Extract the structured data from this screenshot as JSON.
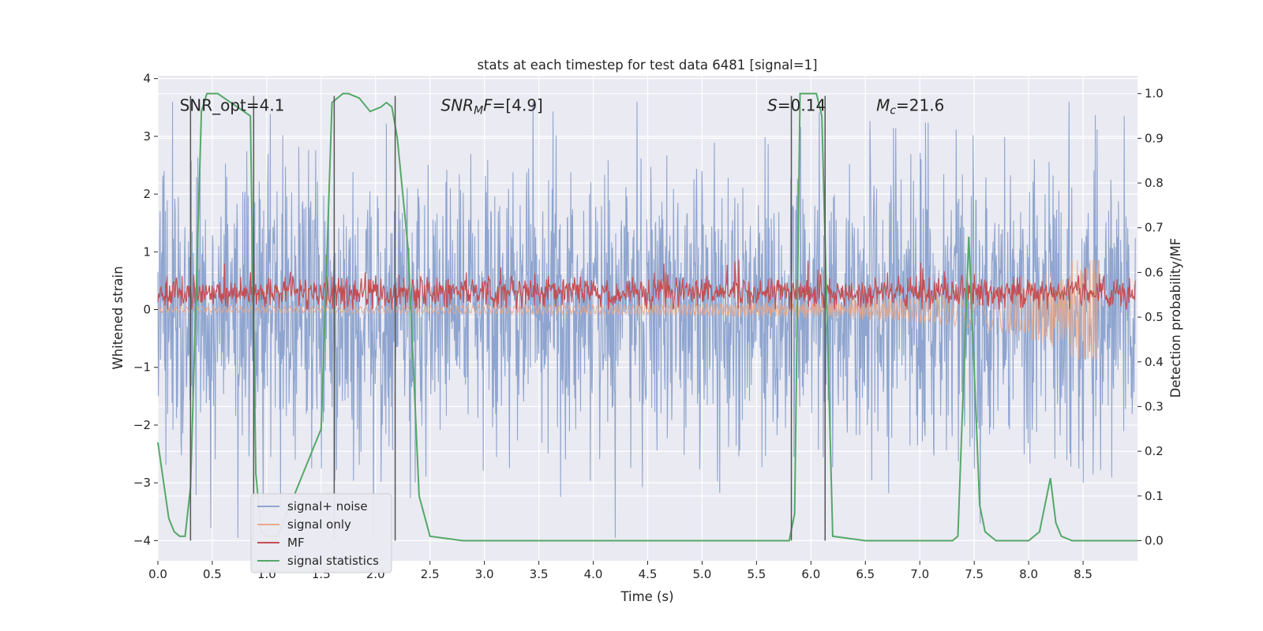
{
  "chart_data": {
    "type": "line",
    "title": "stats at each timestep for test data 6481 [signal=1]",
    "xlabel": "Time (s)",
    "ylabel": "Whitened strain",
    "ylabel_right": "Detection probability/MF",
    "xlim": [
      0,
      9.0
    ],
    "ylim": [
      -4.35,
      4.05
    ],
    "ylim_right": [
      -0.045,
      1.04
    ],
    "x_ticks": [
      0,
      0.5,
      1,
      1.5,
      2,
      2.5,
      3,
      3.5,
      4,
      4.5,
      5,
      5.5,
      6,
      6.5,
      7,
      7.5,
      8,
      8.5
    ],
    "x_tick_labels": [
      "0.0",
      "0.5",
      "1.0",
      "1.5",
      "2.0",
      "2.5",
      "3.0",
      "3.5",
      "4.0",
      "4.5",
      "5.0",
      "5.5",
      "6.0",
      "6.5",
      "7.0",
      "7.5",
      "8.0",
      "8.5"
    ],
    "y_ticks": [
      -4,
      -3,
      -2,
      -1,
      0,
      1,
      2,
      3,
      4
    ],
    "y_tick_labels": [
      "−4",
      "−3",
      "−2",
      "−1",
      "0",
      "1",
      "2",
      "3",
      "4"
    ],
    "y_ticks_right": [
      0,
      0.1,
      0.2,
      0.3,
      0.4,
      0.5,
      0.6,
      0.7,
      0.8,
      0.9,
      1.0
    ],
    "y_tick_labels_right": [
      "0.0",
      "0.1",
      "0.2",
      "0.3",
      "0.4",
      "0.5",
      "0.6",
      "0.7",
      "0.8",
      "0.9",
      "1.0"
    ],
    "grid": true,
    "legend_placement": "lower-left",
    "annotations": [
      {
        "text": "SNR_opt=4.1",
        "x": 0.2,
        "y": 3.55
      },
      {
        "text": "SNR_M F=[4.9]",
        "x": 2.6,
        "y": 3.55
      },
      {
        "text": "S=0.14",
        "x": 5.6,
        "y": 3.55
      },
      {
        "text": "M_c=21.6",
        "x": 6.6,
        "y": 3.55
      }
    ],
    "vertical_lines": [
      0.3,
      0.88,
      1.62,
      2.18,
      5.82,
      6.13
    ],
    "vertical_line_ylim": [
      -4.0,
      3.7
    ],
    "series": [
      {
        "name": "signal+ noise",
        "color": "#8fa5cf",
        "style": "dense noise trace, approx ±4 amplitude"
      },
      {
        "name": "signal only",
        "color": "#e8a98a",
        "style": "chirp growing until ~8.65 s (min ≈ -0.85)"
      },
      {
        "name": "MF",
        "color": "#c44e52",
        "style": "noise band between 0 and ~0.6 around 0.3"
      },
      {
        "name": "signal statistics",
        "color": "#55a868",
        "axis": "right",
        "x": [
          0,
          0.1,
          0.15,
          0.2,
          0.25,
          0.3,
          0.4,
          0.45,
          0.55,
          0.85,
          0.9,
          0.95,
          1.0,
          1.1,
          1.5,
          1.6,
          1.7,
          1.75,
          1.85,
          1.95,
          2.05,
          2.1,
          2.15,
          2.2,
          2.3,
          2.4,
          2.5,
          2.8,
          5.8,
          5.85,
          5.9,
          6.05,
          6.1,
          6.2,
          6.5,
          7.0,
          7.3,
          7.35,
          7.45,
          7.55,
          7.6,
          7.7,
          8.0,
          8.1,
          8.2,
          8.25,
          8.3,
          8.4,
          8.6,
          9.0
        ],
        "y": [
          0.22,
          0.05,
          0.02,
          0.01,
          0.01,
          0.12,
          0.96,
          1.0,
          1.0,
          0.95,
          0.15,
          0.02,
          0.01,
          0.01,
          0.25,
          0.98,
          1.0,
          1.0,
          0.99,
          0.96,
          0.97,
          0.98,
          0.97,
          0.9,
          0.65,
          0.1,
          0.01,
          0.0,
          0.0,
          0.06,
          1.0,
          1.0,
          0.95,
          0.01,
          0.0,
          0.0,
          0.0,
          0.01,
          0.68,
          0.08,
          0.02,
          0.0,
          0.0,
          0.02,
          0.14,
          0.04,
          0.01,
          0.0,
          0.0,
          0.0
        ]
      }
    ]
  }
}
